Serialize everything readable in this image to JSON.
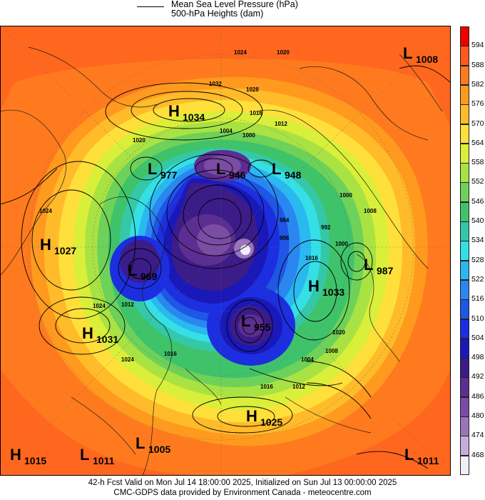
{
  "header": {
    "line1": "Mean Sea Level Pressure (hPa)",
    "line2": "500-hPa Heights (dam)"
  },
  "footer": {
    "line1": "42-h Fcst Valid on Mon Jul 14 18:00:00 2025, Initialized on Sun Jul 13 00:00:00 2025",
    "line2": "CMC-GDPS data provided by Environment Canada - meteocentre.com"
  },
  "colorbar": {
    "ticks": [
      "594",
      "588",
      "582",
      "576",
      "570",
      "564",
      "558",
      "552",
      "546",
      "540",
      "534",
      "528",
      "522",
      "516",
      "510",
      "504",
      "498",
      "492",
      "486",
      "480",
      "474",
      "468"
    ],
    "colors": [
      "#ee0000",
      "#ff5a1e",
      "#ff7a1e",
      "#ff9a1e",
      "#ffbb2a",
      "#ffe03a",
      "#d9ef3a",
      "#a8e243",
      "#6ed159",
      "#3fc36a",
      "#34c8a8",
      "#35dfe6",
      "#2ab8f0",
      "#2a87f0",
      "#1e56e6",
      "#1c2ee0",
      "#1a18b8",
      "#3b1c88",
      "#5c2e92",
      "#7a4ca4",
      "#9a74bc",
      "#c4addb",
      "#f2eef8"
    ]
  },
  "systems": [
    {
      "type": "H",
      "value": "1034"
    },
    {
      "type": "L",
      "value": "1008"
    },
    {
      "type": "L",
      "value": "977"
    },
    {
      "type": "L",
      "value": "946"
    },
    {
      "type": "L",
      "value": "948"
    },
    {
      "type": "H",
      "value": "1027"
    },
    {
      "type": "L",
      "value": "969"
    },
    {
      "type": "L",
      "value": "987"
    },
    {
      "type": "H",
      "value": "1033"
    },
    {
      "type": "H",
      "value": "1031"
    },
    {
      "type": "L",
      "value": "955"
    },
    {
      "type": "H",
      "value": "1025"
    },
    {
      "type": "H",
      "value": "1015"
    },
    {
      "type": "L",
      "value": "1011"
    },
    {
      "type": "L",
      "value": "1005"
    },
    {
      "type": "L",
      "value": "1011"
    }
  ],
  "isobar_labels": [
    "1024",
    "1020",
    "1032",
    "1028",
    "1016",
    "1012",
    "1004",
    "1000",
    "1020",
    "1024",
    "1008",
    "1000",
    "984",
    "992",
    "996",
    "1016",
    "1000",
    "1020",
    "1024",
    "1012",
    "1016",
    "1004",
    "1008",
    "1012",
    "1016",
    "1024"
  ]
}
